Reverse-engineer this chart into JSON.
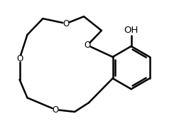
{
  "background_color": "#ffffff",
  "line_color": "#000000",
  "line_width": 1.8,
  "text_color": "#000000",
  "oh_label": "OH",
  "oh_fontsize": 9.5,
  "o_fontsize": 8.5,
  "fig_width": 2.52,
  "fig_height": 1.91,
  "dpi": 100,
  "bx": 7.0,
  "by": 5.0,
  "br": 1.25,
  "xlim": [
    0.5,
    10.5
  ],
  "ylim": [
    1.0,
    8.5
  ]
}
